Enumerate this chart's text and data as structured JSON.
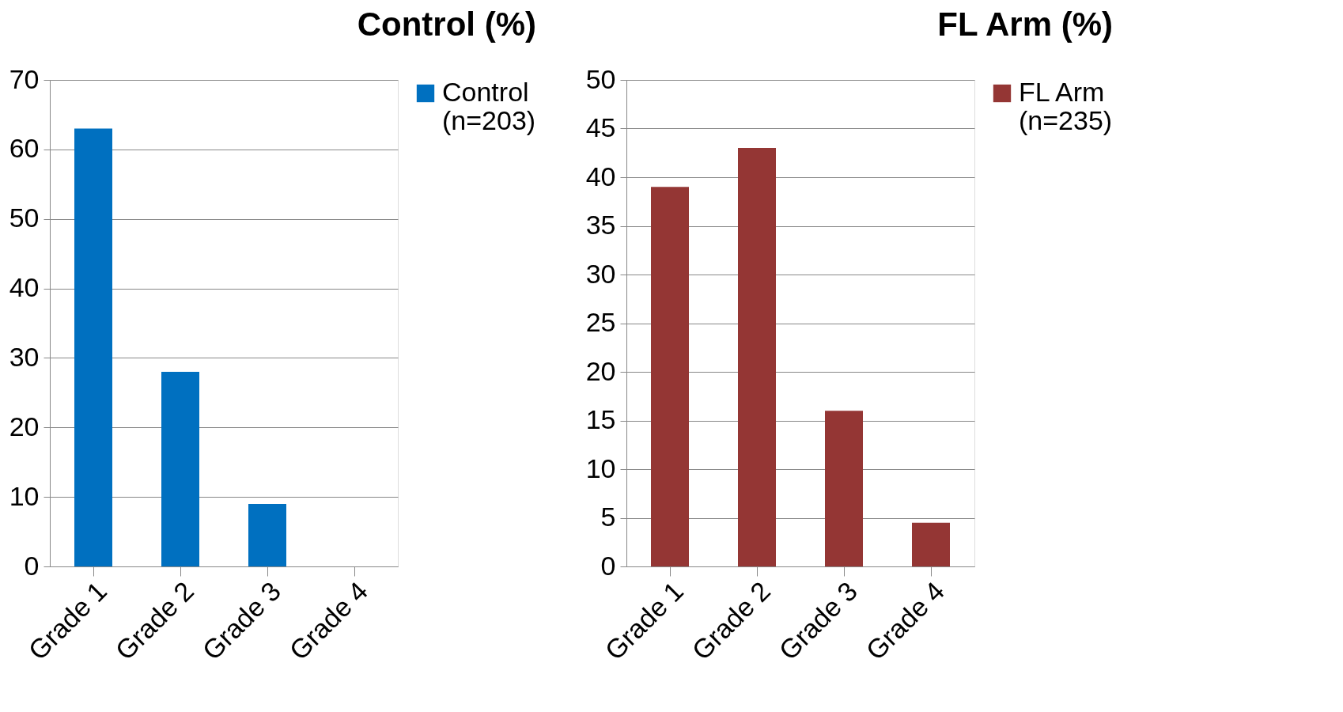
{
  "chart_data": [
    {
      "type": "bar",
      "title": "Control (%)",
      "categories": [
        "Grade 1",
        "Grade 2",
        "Grade 3",
        "Grade 4"
      ],
      "series": [
        {
          "name": "Control\n(n=203)",
          "color": "#0070c0",
          "values": [
            63,
            28,
            9,
            0
          ]
        }
      ],
      "ylim": [
        0,
        70
      ],
      "yticks": [
        0,
        10,
        20,
        30,
        40,
        50,
        60,
        70
      ],
      "grid": "y",
      "legend": "right"
    },
    {
      "type": "bar",
      "title": "FL Arm (%)",
      "categories": [
        "Grade 1",
        "Grade 2",
        "Grade 3",
        "Grade 4"
      ],
      "series": [
        {
          "name": "FL Arm\n(n=235)",
          "color": "#943634",
          "values": [
            39,
            43,
            16,
            4.5
          ]
        }
      ],
      "ylim": [
        0,
        50
      ],
      "yticks": [
        0,
        5,
        10,
        15,
        20,
        25,
        30,
        35,
        40,
        45,
        50
      ],
      "grid": "y",
      "legend": "right"
    }
  ]
}
